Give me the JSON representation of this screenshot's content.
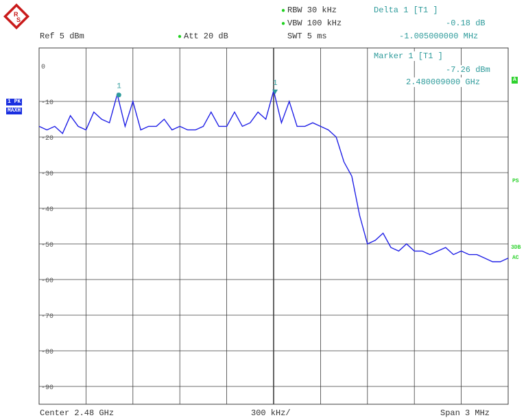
{
  "colors": {
    "trace": "#1f1fe6",
    "grid": "#3c3c3c",
    "marker": "#2e9b9b",
    "status_green": "#1db31d",
    "label_blue": "#1a2fe0"
  },
  "header": {
    "rbw": "RBW 30 kHz",
    "vbw": "VBW 100 kHz",
    "swt": "SWT 5 ms",
    "ref": "Ref  5 dBm",
    "att": "Att  20 dB",
    "delta_title": "Delta 1 [T1 ]",
    "delta_value": "-0.18 dB",
    "delta_freq": "-1.005000000 MHz"
  },
  "marker_box": {
    "title": "Marker 1 [T1 ]",
    "value": "-7.26 dBm",
    "freq": "2.480009000 GHz"
  },
  "trace_label": {
    "line1": "1 PK",
    "line2": "MAXH"
  },
  "side_labels": {
    "a": "A",
    "ps": "PS",
    "b3db": "3DB",
    "ac": "AC"
  },
  "footer": {
    "center": "Center 2.48 GHz",
    "div": "300 kHz/",
    "span": "Span 3 MHz"
  },
  "chart_data": {
    "type": "line",
    "xlabel": "",
    "ylabel": "",
    "xlim": [
      2.4785,
      2.4815
    ],
    "ylim": [
      -95,
      5
    ],
    "y_ticks": [
      0,
      -10,
      -20,
      -30,
      -40,
      -50,
      -60,
      -70,
      -80,
      -90
    ],
    "y_tick_labels": [
      "0",
      "-10",
      "-20",
      "-30",
      "-40",
      "-50",
      "-60",
      "-70",
      "-80",
      "-90"
    ],
    "grid": true,
    "x_unit": "GHz",
    "y_unit": "dBm",
    "series": [
      {
        "x": [
          2.4785,
          2.47855,
          2.4786,
          2.47865,
          2.4787,
          2.47875,
          2.4788,
          2.47885,
          2.4789,
          2.47895,
          2.479,
          2.47905,
          2.4791,
          2.47915,
          2.4792,
          2.47925,
          2.4793,
          2.47935,
          2.4794,
          2.47945,
          2.4795,
          2.47955,
          2.4796,
          2.47965,
          2.4797,
          2.47975,
          2.4798,
          2.47985,
          2.4799,
          2.47995,
          2.48,
          2.48005,
          2.4801,
          2.48015,
          2.4802,
          2.48025,
          2.4803,
          2.48035,
          2.4804,
          2.48045,
          2.4805,
          2.48055,
          2.4806,
          2.48065,
          2.4807,
          2.48075,
          2.4808,
          2.48085,
          2.4809,
          2.48095,
          2.481,
          2.48105,
          2.4811,
          2.48115,
          2.4812,
          2.48125,
          2.4813,
          2.48135,
          2.4814,
          2.48145,
          2.4815
        ],
        "values": [
          -17,
          -18,
          -17,
          -19,
          -14,
          -17,
          -18,
          -13,
          -15,
          -16,
          -8,
          -17,
          -10,
          -18,
          -17,
          -17,
          -15,
          -18,
          -17,
          -18,
          -18,
          -17,
          -13,
          -17,
          -17,
          -13,
          -17,
          -16,
          -13,
          -15,
          -7,
          -16,
          -10,
          -17,
          -17,
          -16,
          -17,
          -18,
          -20,
          -27,
          -31,
          -42,
          -50,
          -49,
          -47,
          -51,
          -52,
          -50,
          -52,
          -52,
          -53,
          -52,
          -51,
          -53,
          -52,
          -53,
          -53,
          -54,
          -55,
          -55,
          -54
        ]
      }
    ],
    "markers": [
      {
        "label": "1",
        "x": 2.47901,
        "y": -8.2
      },
      {
        "label": "1",
        "x": 2.480009,
        "y": -7.26
      }
    ]
  }
}
